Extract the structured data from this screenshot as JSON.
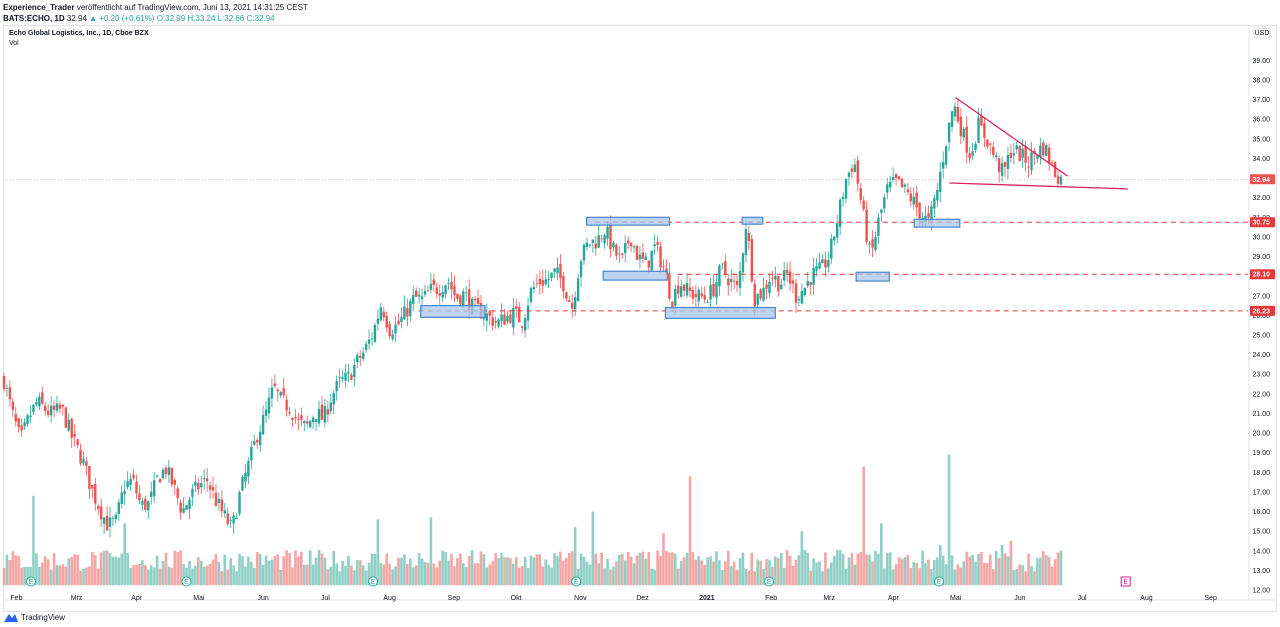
{
  "header": {
    "author": "Experience_Trader",
    "published_text": "veröffentlicht auf TradingView.com, Juni 13, 2021 14:31:25 CEST",
    "symbol_line": "BATS:ECHO, 1D",
    "last": "32.94",
    "change": "+0.20 (+0.61%)",
    "ohlc": "O:32.99 H:33.24 L:32.66 C:32.94"
  },
  "legend": {
    "title": "Echo Global Logistics, Inc., 1D, Cboe BZX",
    "volume_label": "Vol"
  },
  "footer": {
    "brand": "TradingView"
  },
  "colors": {
    "up": "#26a69a",
    "down": "#ef5350",
    "vol_up": "#8fcfc6",
    "vol_down": "#f5a6a4",
    "level": "#e53935",
    "box_fill": "#a8c6ea",
    "box_stroke": "#4a86d0",
    "trend": "#e0245e"
  },
  "chart_data": {
    "type": "candlestick",
    "currency_label": "USD",
    "y_ticks": [
      "39.00",
      "38.00",
      "37.00",
      "36.00",
      "35.00",
      "34.00",
      "33.00",
      "32.00",
      "31.00",
      "30.00",
      "29.00",
      "28.00",
      "27.00",
      "26.00",
      "25.00",
      "24.00",
      "23.00",
      "22.00",
      "21.00",
      "20.00",
      "19.00",
      "18.00",
      "17.00",
      "16.00",
      "15.00",
      "14.00",
      "13.00",
      "12.00"
    ],
    "ylim": [
      11.8,
      39.6
    ],
    "x_labels": [
      "Feb",
      "Mrz",
      "Apr",
      "Mai",
      "Jun",
      "Jul",
      "Aug",
      "Sep",
      "Okt",
      "Nov",
      "Dez",
      "2021",
      "Feb",
      "Mrz",
      "Apr",
      "Mai",
      "Jun",
      "Jul",
      "Aug",
      "Sep"
    ],
    "x_label_days": [
      6,
      35,
      64,
      94,
      125,
      155,
      186,
      217,
      247,
      278,
      308,
      339,
      370,
      398,
      429,
      459,
      490,
      520,
      551,
      582
    ],
    "last_price": {
      "label": "32.94",
      "value": 32.94
    },
    "levels": [
      {
        "label": "30.75",
        "value": 30.75,
        "start_day": 285
      },
      {
        "label": "28.10",
        "value": 28.1,
        "start_day": 325
      },
      {
        "label": "26.23",
        "value": 26.23,
        "start_day": 200
      }
    ],
    "boxes": [
      {
        "d1": 201,
        "d2": 232,
        "p1": 26.5,
        "p2": 25.9
      },
      {
        "d1": 281,
        "d2": 321,
        "p1": 31.0,
        "p2": 30.6
      },
      {
        "d1": 289,
        "d2": 320,
        "p1": 28.25,
        "p2": 27.8
      },
      {
        "d1": 319,
        "d2": 372,
        "p1": 26.4,
        "p2": 25.85
      },
      {
        "d1": 356,
        "d2": 366,
        "p1": 31.0,
        "p2": 30.65
      },
      {
        "d1": 411,
        "d2": 427,
        "p1": 28.2,
        "p2": 27.75
      },
      {
        "d1": 439,
        "d2": 461,
        "p1": 30.9,
        "p2": 30.5
      }
    ],
    "trendlines": [
      {
        "d1": 459,
        "p1": 37.1,
        "d2": 513,
        "p2": 33.1
      },
      {
        "d1": 456,
        "p1": 32.75,
        "d2": 542,
        "p2": 32.45
      }
    ],
    "earnings_days": [
      13,
      88,
      178,
      276,
      369,
      451
    ],
    "upcoming_earnings_day": 541,
    "earnings_glyph": "E",
    "close_path": [
      [
        0,
        22.7
      ],
      [
        4,
        21.0
      ],
      [
        8,
        19.6
      ],
      [
        12,
        20.8
      ],
      [
        16,
        21.6
      ],
      [
        22,
        21.0
      ],
      [
        28,
        21.2
      ],
      [
        33,
        19.7
      ],
      [
        38,
        18.6
      ],
      [
        42,
        17.2
      ],
      [
        46,
        16.2
      ],
      [
        50,
        15.3
      ],
      [
        54,
        15.5
      ],
      [
        58,
        17.3
      ],
      [
        62,
        17.6
      ],
      [
        66,
        16.3
      ],
      [
        70,
        16.4
      ],
      [
        74,
        17.7
      ],
      [
        78,
        18.2
      ],
      [
        82,
        17.2
      ],
      [
        86,
        16.0
      ],
      [
        90,
        16.8
      ],
      [
        94,
        17.3
      ],
      [
        98,
        17.6
      ],
      [
        102,
        16.6
      ],
      [
        106,
        15.8
      ],
      [
        110,
        15.1
      ],
      [
        114,
        17.0
      ],
      [
        118,
        18.4
      ],
      [
        122,
        19.9
      ],
      [
        126,
        20.9
      ],
      [
        130,
        22.3
      ],
      [
        134,
        21.6
      ],
      [
        138,
        21.3
      ],
      [
        142,
        20.5
      ],
      [
        146,
        20.3
      ],
      [
        150,
        21.1
      ],
      [
        154,
        20.7
      ],
      [
        158,
        21.9
      ],
      [
        162,
        22.6
      ],
      [
        166,
        22.8
      ],
      [
        170,
        23.6
      ],
      [
        174,
        24.2
      ],
      [
        178,
        25.1
      ],
      [
        182,
        26.6
      ],
      [
        186,
        25.3
      ],
      [
        190,
        25.5
      ],
      [
        194,
        26.2
      ],
      [
        198,
        26.9
      ],
      [
        202,
        26.8
      ],
      [
        206,
        27.3
      ],
      [
        210,
        27.4
      ],
      [
        214,
        27.8
      ],
      [
        218,
        26.9
      ],
      [
        222,
        27.1
      ],
      [
        226,
        26.4
      ],
      [
        230,
        26.2
      ],
      [
        234,
        25.9
      ],
      [
        238,
        25.6
      ],
      [
        242,
        25.9
      ],
      [
        246,
        26.1
      ],
      [
        250,
        25.7
      ],
      [
        254,
        27.2
      ],
      [
        258,
        27.7
      ],
      [
        262,
        27.8
      ],
      [
        266,
        28.2
      ],
      [
        270,
        27.6
      ],
      [
        274,
        26.4
      ],
      [
        278,
        28.9
      ],
      [
        282,
        29.7
      ],
      [
        286,
        29.8
      ],
      [
        290,
        30.4
      ],
      [
        294,
        29.3
      ],
      [
        298,
        28.7
      ],
      [
        302,
        30.1
      ],
      [
        306,
        28.9
      ],
      [
        310,
        28.6
      ],
      [
        314,
        29.5
      ],
      [
        318,
        28.5
      ],
      [
        322,
        26.8
      ],
      [
        326,
        27.7
      ],
      [
        330,
        27.2
      ],
      [
        334,
        27.0
      ],
      [
        338,
        26.9
      ],
      [
        342,
        27.3
      ],
      [
        346,
        28.4
      ],
      [
        350,
        27.8
      ],
      [
        354,
        27.3
      ],
      [
        358,
        30.8
      ],
      [
        362,
        26.9
      ],
      [
        366,
        27.2
      ],
      [
        370,
        28.1
      ],
      [
        374,
        27.6
      ],
      [
        378,
        28.1
      ],
      [
        382,
        27.0
      ],
      [
        386,
        27.4
      ],
      [
        390,
        28.1
      ],
      [
        394,
        28.3
      ],
      [
        398,
        29.0
      ],
      [
        402,
        30.9
      ],
      [
        406,
        32.9
      ],
      [
        410,
        33.9
      ],
      [
        414,
        31.4
      ],
      [
        418,
        28.9
      ],
      [
        422,
        30.9
      ],
      [
        426,
        32.4
      ],
      [
        430,
        32.8
      ],
      [
        434,
        32.4
      ],
      [
        438,
        31.9
      ],
      [
        442,
        31.2
      ],
      [
        446,
        30.7
      ],
      [
        450,
        32.3
      ],
      [
        454,
        34.7
      ],
      [
        458,
        36.8
      ],
      [
        462,
        35.4
      ],
      [
        466,
        34.2
      ],
      [
        470,
        35.7
      ],
      [
        474,
        35.0
      ],
      [
        478,
        34.0
      ],
      [
        482,
        33.2
      ],
      [
        486,
        34.5
      ],
      [
        490,
        34.2
      ],
      [
        494,
        33.8
      ],
      [
        498,
        34.4
      ],
      [
        502,
        34.6
      ],
      [
        506,
        33.4
      ],
      [
        510,
        32.94
      ]
    ],
    "volume_spikes": [
      [
        14,
        16.8
      ],
      [
        58,
        15.4
      ],
      [
        181,
        15.6
      ],
      [
        206,
        15.7
      ],
      [
        276,
        15.2
      ],
      [
        284,
        16.0
      ],
      [
        318,
        14.9
      ],
      [
        331,
        17.8
      ],
      [
        385,
        15.0
      ],
      [
        414,
        18.3
      ],
      [
        423,
        15.4
      ],
      [
        452,
        14.3
      ],
      [
        456,
        18.9
      ],
      [
        481,
        14.3
      ],
      [
        486,
        14.5
      ]
    ],
    "volume_scale": {
      "base": 12.6,
      "typical_top": 13.9
    }
  }
}
